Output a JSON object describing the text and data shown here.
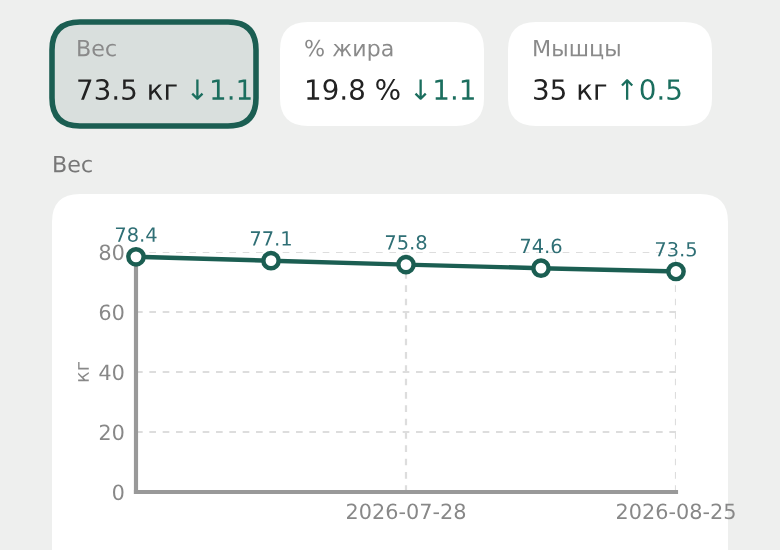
{
  "chart_data": [
    {
      "type": "other",
      "annotations": [
        "Вес",
        "73.5 кг",
        "↓1.1",
        "% жира",
        "19.8 %",
        "↓1.1",
        "Мышцы",
        "35 кг",
        "↑0.5"
      ]
    },
    {
      "type": "line",
      "title": "Вес",
      "ylabel": "кг",
      "x": [
        "2026-06-30",
        "2026-07-14",
        "2026-07-28",
        "2026-08-11",
        "2026-08-25"
      ],
      "series": [
        {
          "color": "#1b5e52",
          "values": [
            78.4,
            77.1,
            75.8,
            74.6,
            73.5
          ]
        }
      ],
      "xlim": [
        "2026-06-30",
        "2026-08-25"
      ],
      "xticks": [
        "2026-07-28",
        "2026-08-25"
      ],
      "ylim": [
        0,
        80
      ],
      "yticks": [
        0,
        20,
        40,
        60,
        80
      ],
      "grid": true,
      "marker": "circle",
      "line_style": "solid",
      "data_labels": true
    }
  ]
}
